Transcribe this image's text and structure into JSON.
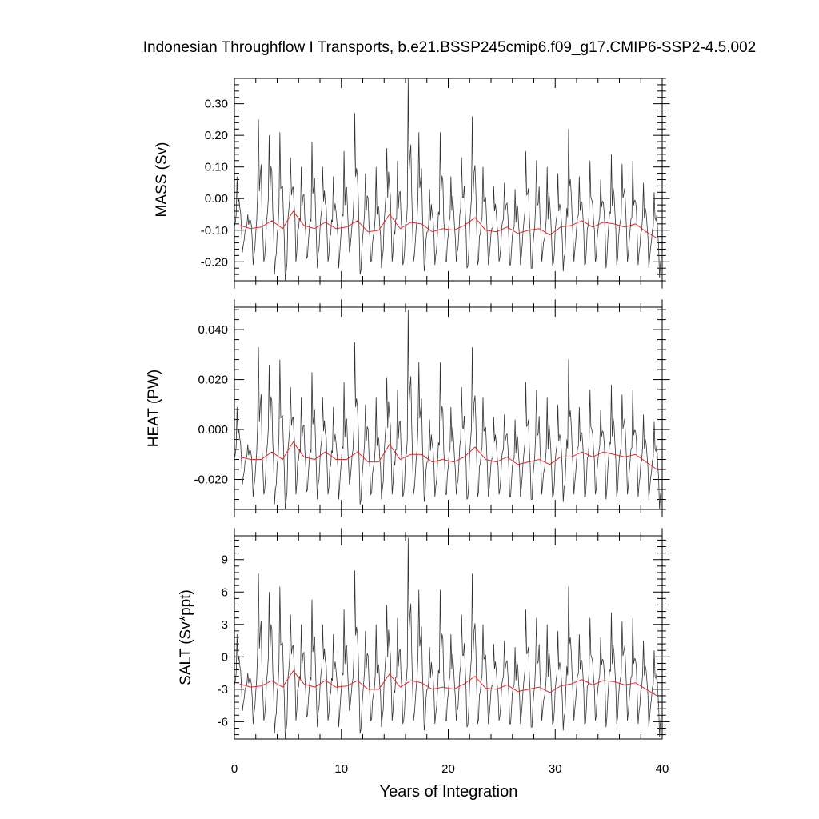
{
  "chart_data": {
    "type": "line",
    "title": "Indonesian Throughflow I Transports, b.e21.BSSP245cmip6.f09_g17.CMIP6-SSP2-4.5.002",
    "xlabel": "Years of Integration",
    "xlim": [
      0,
      40
    ],
    "x_ticks": [
      "0",
      "10",
      "20",
      "30",
      "40"
    ],
    "series_style": {
      "monthly_color": "#333333",
      "annual_color": "#e8282b"
    },
    "panels": [
      {
        "ylabel": "MASS (Sv)",
        "ylim": [
          -0.26,
          0.38
        ],
        "y_ticks": [
          "-0.20",
          "-0.10",
          "0.00",
          "0.10",
          "0.20",
          "0.30"
        ],
        "annual_mean": [
          -0.085,
          -0.095,
          -0.09,
          -0.07,
          -0.095,
          -0.04,
          -0.085,
          -0.095,
          -0.075,
          -0.095,
          -0.09,
          -0.07,
          -0.105,
          -0.1,
          -0.05,
          -0.095,
          -0.075,
          -0.08,
          -0.105,
          -0.095,
          -0.1,
          -0.085,
          -0.06,
          -0.1,
          -0.105,
          -0.09,
          -0.11,
          -0.1,
          -0.095,
          -0.115,
          -0.09,
          -0.085,
          -0.07,
          -0.09,
          -0.075,
          -0.08,
          -0.09,
          -0.08,
          -0.105,
          -0.125
        ],
        "monthly_peaks": [
          0.07,
          -0.05,
          0.25,
          0.2,
          0.21,
          0.13,
          0.1,
          0.18,
          0.1,
          0.07,
          0.15,
          0.27,
          0.08,
          0.1,
          0.16,
          0.12,
          0.38,
          0.21,
          0.03,
          0.21,
          0.07,
          0.13,
          0.26,
          0.1,
          0.04,
          0.05,
          0.03,
          0.15,
          0.12,
          0.1,
          0.08,
          0.22,
          0.07,
          0.12,
          0.06,
          0.14,
          0.11,
          0.12,
          0.05,
          0.02
        ],
        "monthly_troughs": [
          -0.17,
          -0.21,
          -0.2,
          -0.24,
          -0.26,
          -0.2,
          -0.19,
          -0.22,
          -0.2,
          -0.22,
          -0.17,
          -0.24,
          -0.2,
          -0.22,
          -0.2,
          -0.21,
          -0.2,
          -0.23,
          -0.21,
          -0.2,
          -0.2,
          -0.22,
          -0.21,
          -0.21,
          -0.2,
          -0.21,
          -0.21,
          -0.22,
          -0.2,
          -0.21,
          -0.23,
          -0.2,
          -0.21,
          -0.2,
          -0.22,
          -0.21,
          -0.2,
          -0.21,
          -0.22,
          -0.25
        ]
      },
      {
        "ylabel": "HEAT (PW)",
        "ylim": [
          -0.032,
          0.049
        ],
        "y_ticks": [
          "-0.020",
          "0.000",
          "0.020",
          "0.040"
        ],
        "annual_mean": [
          -0.011,
          -0.012,
          -0.012,
          -0.009,
          -0.012,
          -0.005,
          -0.011,
          -0.012,
          -0.009,
          -0.012,
          -0.012,
          -0.009,
          -0.013,
          -0.013,
          -0.006,
          -0.012,
          -0.01,
          -0.01,
          -0.013,
          -0.012,
          -0.013,
          -0.011,
          -0.007,
          -0.012,
          -0.013,
          -0.011,
          -0.014,
          -0.013,
          -0.012,
          -0.014,
          -0.011,
          -0.011,
          -0.009,
          -0.011,
          -0.009,
          -0.01,
          -0.011,
          -0.01,
          -0.013,
          -0.016
        ],
        "monthly_peaks": [
          0.009,
          -0.006,
          0.033,
          0.026,
          0.028,
          0.017,
          0.013,
          0.023,
          0.013,
          0.009,
          0.019,
          0.035,
          0.01,
          0.013,
          0.021,
          0.016,
          0.048,
          0.027,
          0.004,
          0.027,
          0.009,
          0.017,
          0.033,
          0.013,
          0.005,
          0.006,
          0.004,
          0.019,
          0.016,
          0.013,
          0.01,
          0.028,
          0.009,
          0.016,
          0.008,
          0.018,
          0.014,
          0.016,
          0.006,
          0.003
        ],
        "monthly_troughs": [
          -0.022,
          -0.027,
          -0.026,
          -0.03,
          -0.032,
          -0.026,
          -0.025,
          -0.028,
          -0.026,
          -0.028,
          -0.022,
          -0.03,
          -0.026,
          -0.028,
          -0.026,
          -0.027,
          -0.026,
          -0.029,
          -0.027,
          -0.026,
          -0.026,
          -0.028,
          -0.027,
          -0.027,
          -0.026,
          -0.027,
          -0.027,
          -0.028,
          -0.026,
          -0.027,
          -0.029,
          -0.026,
          -0.027,
          -0.026,
          -0.028,
          -0.027,
          -0.026,
          -0.027,
          -0.028,
          -0.032
        ]
      },
      {
        "ylabel": "SALT (Sv*ppt)",
        "ylim": [
          -7.6,
          11.2
        ],
        "y_ticks": [
          "-6",
          "-3",
          "0",
          "3",
          "6",
          "9"
        ],
        "annual_mean": [
          -2.5,
          -2.8,
          -2.7,
          -2.2,
          -2.8,
          -1.3,
          -2.5,
          -2.8,
          -2.2,
          -2.8,
          -2.7,
          -2.2,
          -3.0,
          -3.0,
          -1.6,
          -2.8,
          -2.2,
          -2.4,
          -3.0,
          -2.8,
          -3.0,
          -2.5,
          -1.8,
          -2.9,
          -3.0,
          -2.6,
          -3.2,
          -3.0,
          -2.8,
          -3.3,
          -2.7,
          -2.5,
          -2.1,
          -2.6,
          -2.2,
          -2.3,
          -2.6,
          -2.4,
          -3.0,
          -3.6
        ],
        "monthly_peaks": [
          2.1,
          -1.5,
          7.7,
          6.0,
          6.5,
          3.9,
          3.0,
          5.3,
          3.0,
          2.1,
          4.4,
          8.0,
          2.4,
          3.0,
          4.8,
          3.6,
          11.0,
          6.2,
          0.9,
          6.2,
          2.1,
          3.9,
          7.7,
          3.0,
          1.2,
          1.5,
          0.9,
          4.4,
          3.6,
          3.0,
          2.4,
          6.5,
          2.1,
          3.6,
          1.8,
          4.1,
          3.3,
          3.6,
          1.5,
          0.6
        ],
        "monthly_troughs": [
          -5.0,
          -6.2,
          -5.9,
          -7.1,
          -7.6,
          -5.9,
          -5.6,
          -6.5,
          -5.9,
          -6.5,
          -5.0,
          -7.1,
          -5.9,
          -6.5,
          -5.9,
          -6.2,
          -5.9,
          -6.8,
          -6.2,
          -5.9,
          -5.9,
          -6.5,
          -6.2,
          -6.2,
          -5.9,
          -6.2,
          -6.2,
          -6.5,
          -5.9,
          -6.2,
          -6.8,
          -5.9,
          -6.2,
          -5.9,
          -6.5,
          -6.2,
          -5.9,
          -6.2,
          -6.5,
          -7.4
        ]
      }
    ]
  }
}
